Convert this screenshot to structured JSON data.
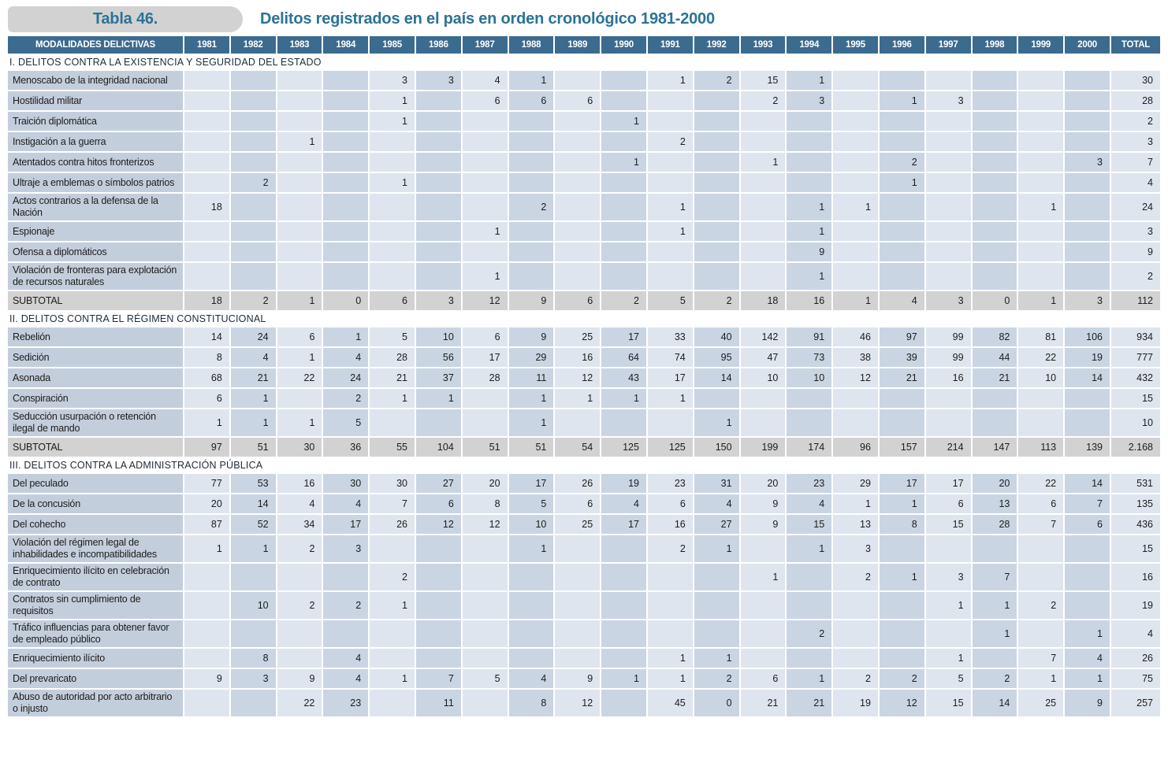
{
  "title": {
    "tag": "Tabla 46.",
    "text": "Delitos registrados en el país en orden cronológico 1981-2000"
  },
  "colors": {
    "header_bg": "#3b6b8e",
    "accent_text": "#2b7396",
    "tag_bg": "#d2d2d2",
    "label_cell_bg": "#c3cedd",
    "column_light_bg": "#dee5ee",
    "column_dark_bg": "#c9d5e3",
    "subtotal_bg": "#d2d2d2"
  },
  "table": {
    "header_label": "MODALIDADES DELICTIVAS",
    "columns": [
      "1981",
      "1982",
      "1983",
      "1984",
      "1985",
      "1986",
      "1987",
      "1988",
      "1989",
      "1990",
      "1991",
      "1992",
      "1993",
      "1994",
      "1995",
      "1996",
      "1997",
      "1998",
      "1999",
      "2000",
      "TOTAL"
    ],
    "sections": [
      {
        "title": "I. DELITOS CONTRA LA EXISTENCIA Y SEGURIDAD DEL ESTADO",
        "rows": [
          {
            "label": "Menoscabo de la integridad nacional",
            "values": [
              "",
              "",
              "",
              "",
              "3",
              "3",
              "4",
              "1",
              "",
              "",
              "1",
              "2",
              "15",
              "1",
              "",
              "",
              "",
              "",
              "",
              "",
              "30"
            ]
          },
          {
            "label": "Hostilidad militar",
            "values": [
              "",
              "",
              "",
              "",
              "1",
              "",
              "6",
              "6",
              "6",
              "",
              "",
              "",
              "2",
              "3",
              "",
              "1",
              "3",
              "",
              "",
              "",
              "28"
            ]
          },
          {
            "label": "Traición diplomática",
            "values": [
              "",
              "",
              "",
              "",
              "1",
              "",
              "",
              "",
              "",
              "1",
              "",
              "",
              "",
              "",
              "",
              "",
              "",
              "",
              "",
              "",
              "2"
            ]
          },
          {
            "label": "Instigación a la guerra",
            "values": [
              "",
              "",
              "1",
              "",
              "",
              "",
              "",
              "",
              "",
              "",
              "2",
              "",
              "",
              "",
              "",
              "",
              "",
              "",
              "",
              "",
              "3"
            ]
          },
          {
            "label": "Atentados contra hitos fronterizos",
            "values": [
              "",
              "",
              "",
              "",
              "",
              "",
              "",
              "",
              "",
              "1",
              "",
              "",
              "1",
              "",
              "",
              "2",
              "",
              "",
              "",
              "3",
              "7"
            ]
          },
          {
            "label": "Ultraje a emblemas o símbolos patrios",
            "values": [
              "",
              "2",
              "",
              "",
              "1",
              "",
              "",
              "",
              "",
              "",
              "",
              "",
              "",
              "",
              "",
              "1",
              "",
              "",
              "",
              "",
              "4"
            ]
          },
          {
            "label": "Actos contrarios a la defensa de la Nación",
            "values": [
              "18",
              "",
              "",
              "",
              "",
              "",
              "",
              "2",
              "",
              "",
              "1",
              "",
              "",
              "1",
              "1",
              "",
              "",
              "",
              "1",
              "",
              "24"
            ]
          },
          {
            "label": "Espionaje",
            "values": [
              "",
              "",
              "",
              "",
              "",
              "",
              "1",
              "",
              "",
              "",
              "1",
              "",
              "",
              "1",
              "",
              "",
              "",
              "",
              "",
              "",
              "3"
            ]
          },
          {
            "label": "Ofensa a diplomáticos",
            "values": [
              "",
              "",
              "",
              "",
              "",
              "",
              "",
              "",
              "",
              "",
              "",
              "",
              "",
              "9",
              "",
              "",
              "",
              "",
              "",
              "",
              "9"
            ]
          },
          {
            "label": "Violación de fronteras para explotación de recursos naturales",
            "values": [
              "",
              "",
              "",
              "",
              "",
              "",
              "1",
              "",
              "",
              "",
              "",
              "",
              "",
              "1",
              "",
              "",
              "",
              "",
              "",
              "",
              "2"
            ]
          },
          {
            "label": "SUBTOTAL",
            "subtotal": true,
            "values": [
              "18",
              "2",
              "1",
              "0",
              "6",
              "3",
              "12",
              "9",
              "6",
              "2",
              "5",
              "2",
              "18",
              "16",
              "1",
              "4",
              "3",
              "0",
              "1",
              "3",
              "112"
            ]
          }
        ]
      },
      {
        "title": "II. DELITOS CONTRA EL RÉGIMEN CONSTITUCIONAL",
        "rows": [
          {
            "label": "Rebelión",
            "values": [
              "14",
              "24",
              "6",
              "1",
              "5",
              "10",
              "6",
              "9",
              "25",
              "17",
              "33",
              "40",
              "142",
              "91",
              "46",
              "97",
              "99",
              "82",
              "81",
              "106",
              "934"
            ]
          },
          {
            "label": "Sedición",
            "values": [
              "8",
              "4",
              "1",
              "4",
              "28",
              "56",
              "17",
              "29",
              "16",
              "64",
              "74",
              "95",
              "47",
              "73",
              "38",
              "39",
              "99",
              "44",
              "22",
              "19",
              "777"
            ]
          },
          {
            "label": "Asonada",
            "values": [
              "68",
              "21",
              "22",
              "24",
              "21",
              "37",
              "28",
              "11",
              "12",
              "43",
              "17",
              "14",
              "10",
              "10",
              "12",
              "21",
              "16",
              "21",
              "10",
              "14",
              "432"
            ]
          },
          {
            "label": "Conspiración",
            "values": [
              "6",
              "1",
              "",
              "2",
              "1",
              "1",
              "",
              "1",
              "1",
              "1",
              "1",
              "",
              "",
              "",
              "",
              "",
              "",
              "",
              "",
              "",
              "15"
            ]
          },
          {
            "label": "Seducción usurpación o retención ilegal de mando",
            "values": [
              "1",
              "1",
              "1",
              "5",
              "",
              "",
              "",
              "1",
              "",
              "",
              "",
              "1",
              "",
              "",
              "",
              "",
              "",
              "",
              "",
              "",
              "10"
            ]
          },
          {
            "label": "SUBTOTAL",
            "subtotal": true,
            "values": [
              "97",
              "51",
              "30",
              "36",
              "55",
              "104",
              "51",
              "51",
              "54",
              "125",
              "125",
              "150",
              "199",
              "174",
              "96",
              "157",
              "214",
              "147",
              "113",
              "139",
              "2.168"
            ]
          }
        ]
      },
      {
        "title": "III. DELITOS CONTRA LA ADMINISTRACIÓN PÚBLICA",
        "rows": [
          {
            "label": "Del peculado",
            "values": [
              "77",
              "53",
              "16",
              "30",
              "30",
              "27",
              "20",
              "17",
              "26",
              "19",
              "23",
              "31",
              "20",
              "23",
              "29",
              "17",
              "17",
              "20",
              "22",
              "14",
              "531"
            ]
          },
          {
            "label": "De la concusión",
            "values": [
              "20",
              "14",
              "4",
              "4",
              "7",
              "6",
              "8",
              "5",
              "6",
              "4",
              "6",
              "4",
              "9",
              "4",
              "1",
              "1",
              "6",
              "13",
              "6",
              "7",
              "135"
            ]
          },
          {
            "label": "Del cohecho",
            "values": [
              "87",
              "52",
              "34",
              "17",
              "26",
              "12",
              "12",
              "10",
              "25",
              "17",
              "16",
              "27",
              "9",
              "15",
              "13",
              "8",
              "15",
              "28",
              "7",
              "6",
              "436"
            ]
          },
          {
            "label": "Violación del régimen legal de inhabilidades e incompatibilidades",
            "values": [
              "1",
              "1",
              "2",
              "3",
              "",
              "",
              "",
              "1",
              "",
              "",
              "2",
              "1",
              "",
              "1",
              "3",
              "",
              "",
              "",
              "",
              "",
              "15"
            ]
          },
          {
            "label": "Enriquecimiento ilícito en celebración de contrato",
            "values": [
              "",
              "",
              "",
              "",
              "2",
              "",
              "",
              "",
              "",
              "",
              "",
              "",
              "1",
              "",
              "2",
              "1",
              "3",
              "7",
              "",
              "",
              "16"
            ]
          },
          {
            "label": "Contratos sin cumplimiento de requisitos",
            "values": [
              "",
              "10",
              "2",
              "2",
              "1",
              "",
              "",
              "",
              "",
              "",
              "",
              "",
              "",
              "",
              "",
              "",
              "1",
              "1",
              "2",
              "",
              "19"
            ]
          },
          {
            "label": "Tráfico influencias para obtener favor de empleado público",
            "values": [
              "",
              "",
              "",
              "",
              "",
              "",
              "",
              "",
              "",
              "",
              "",
              "",
              "",
              "2",
              "",
              "",
              "",
              "1",
              "",
              "1",
              "4"
            ]
          },
          {
            "label": "Enriquecimiento ilícito",
            "values": [
              "",
              "8",
              "",
              "4",
              "",
              "",
              "",
              "",
              "",
              "",
              "1",
              "1",
              "",
              "",
              "",
              "",
              "1",
              "",
              "7",
              "4",
              "26"
            ]
          },
          {
            "label": "Del prevaricato",
            "values": [
              "9",
              "3",
              "9",
              "4",
              "1",
              "7",
              "5",
              "4",
              "9",
              "1",
              "1",
              "2",
              "6",
              "1",
              "2",
              "2",
              "5",
              "2",
              "1",
              "1",
              "75"
            ]
          },
          {
            "label": "Abuso de autoridad por acto arbitrario o injusto",
            "values": [
              "",
              "",
              "22",
              "23",
              "",
              "11",
              "",
              "8",
              "12",
              "",
              "45",
              "0",
              "21",
              "21",
              "19",
              "12",
              "15",
              "14",
              "25",
              "9",
              "257"
            ]
          }
        ]
      }
    ]
  }
}
